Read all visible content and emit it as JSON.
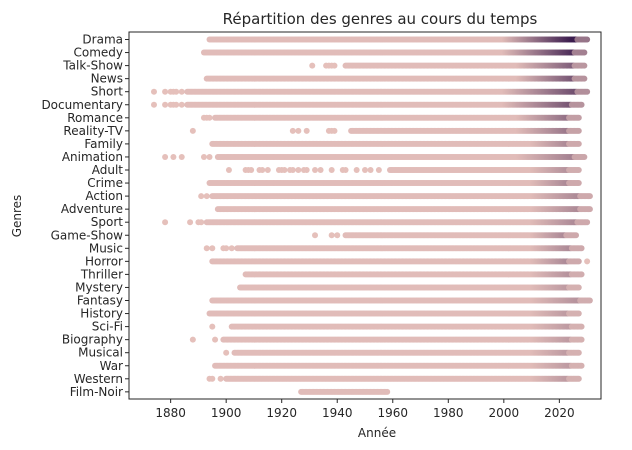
{
  "chart_data": {
    "type": "scatter",
    "title": "Répartition des genres au cours du temps",
    "xlabel": "Année",
    "ylabel": "Genres",
    "xlim": [
      1865,
      2035
    ],
    "xticks": [
      1880,
      1900,
      1920,
      1940,
      1960,
      1980,
      2000,
      2020
    ],
    "grid": false,
    "legend": "none",
    "colors": {
      "low": "#e8c3bd",
      "high": "#3b1c4e",
      "axis": "#262626"
    },
    "categories": [
      "Drama",
      "Comedy",
      "Talk-Show",
      "News",
      "Short",
      "Documentary",
      "Romance",
      "Reality-TV",
      "Family",
      "Animation",
      "Adult",
      "Crime",
      "Action",
      "Adventure",
      "Sport",
      "Game-Show",
      "Music",
      "Horror",
      "Thriller",
      "Mystery",
      "Fantasy",
      "History",
      "Sci-Fi",
      "Biography",
      "Musical",
      "War",
      "Western",
      "Film-Noir"
    ],
    "series": [
      {
        "genre": "Drama",
        "isolated": [],
        "range": [
          1894,
          2030
        ],
        "dense_from": 2000,
        "intensity": 1.0
      },
      {
        "genre": "Comedy",
        "isolated": [],
        "range": [
          1892,
          2029
        ],
        "dense_from": 2000,
        "intensity": 0.85
      },
      {
        "genre": "Talk-Show",
        "isolated": [
          1931,
          1936,
          1937,
          1938,
          1939
        ],
        "range": [
          1943,
          2029
        ],
        "dense_from": 2005,
        "intensity": 0.55
      },
      {
        "genre": "News",
        "isolated": [],
        "range": [
          1893,
          2029
        ],
        "dense_from": 2005,
        "intensity": 0.6
      },
      {
        "genre": "Short",
        "isolated": [
          1874,
          1878,
          1880,
          1881,
          1882,
          1884
        ],
        "range": [
          1886,
          2030
        ],
        "dense_from": 2000,
        "intensity": 0.65
      },
      {
        "genre": "Documentary",
        "isolated": [
          1874,
          1878,
          1880,
          1881,
          1882,
          1884
        ],
        "range": [
          1886,
          2028
        ],
        "dense_from": 2000,
        "intensity": 0.6
      },
      {
        "genre": "Romance",
        "isolated": [
          1892,
          1893,
          1894
        ],
        "range": [
          1896,
          2027
        ],
        "dense_from": 2005,
        "intensity": 0.45
      },
      {
        "genre": "Reality-TV",
        "isolated": [
          1888,
          1924,
          1926,
          1929,
          1937,
          1938,
          1939
        ],
        "range": [
          1945,
          2027
        ],
        "dense_from": 2005,
        "intensity": 0.4
      },
      {
        "genre": "Family",
        "isolated": [],
        "range": [
          1895,
          2027
        ],
        "dense_from": 2010,
        "intensity": 0.3
      },
      {
        "genre": "Animation",
        "isolated": [
          1878,
          1881,
          1884,
          1892,
          1894
        ],
        "range": [
          1897,
          2029
        ],
        "dense_from": 2005,
        "intensity": 0.35
      },
      {
        "genre": "Adult",
        "isolated": [
          1901,
          1907,
          1908,
          1909,
          1912,
          1913,
          1915,
          1919,
          1920,
          1921,
          1923,
          1924,
          1926,
          1928,
          1929,
          1932,
          1934,
          1938,
          1942,
          1943,
          1947,
          1950,
          1952,
          1955
        ],
        "range": [
          1959,
          2027
        ],
        "dense_from": 2010,
        "intensity": 0.25
      },
      {
        "genre": "Crime",
        "isolated": [],
        "range": [
          1894,
          2027
        ],
        "dense_from": 2010,
        "intensity": 0.3
      },
      {
        "genre": "Action",
        "isolated": [
          1891,
          1893
        ],
        "range": [
          1895,
          2031
        ],
        "dense_from": 2010,
        "intensity": 0.3
      },
      {
        "genre": "Adventure",
        "isolated": [],
        "range": [
          1897,
          2031
        ],
        "dense_from": 2010,
        "intensity": 0.3
      },
      {
        "genre": "Sport",
        "isolated": [
          1878,
          1887,
          1890,
          1891
        ],
        "range": [
          1893,
          2030
        ],
        "dense_from": 2010,
        "intensity": 0.3
      },
      {
        "genre": "Game-Show",
        "isolated": [
          1932,
          1938,
          1940
        ],
        "range": [
          1943,
          2026
        ],
        "dense_from": 2010,
        "intensity": 0.3
      },
      {
        "genre": "Music",
        "isolated": [
          1893,
          1895,
          1899,
          1900,
          1902
        ],
        "range": [
          1904,
          2028
        ],
        "dense_from": 2010,
        "intensity": 0.3
      },
      {
        "genre": "Horror",
        "isolated": [
          2030
        ],
        "range": [
          1895,
          2027
        ],
        "dense_from": 2010,
        "intensity": 0.3
      },
      {
        "genre": "Thriller",
        "isolated": [],
        "range": [
          1907,
          2028
        ],
        "dense_from": 2010,
        "intensity": 0.25
      },
      {
        "genre": "Mystery",
        "isolated": [],
        "range": [
          1905,
          2027
        ],
        "dense_from": 2010,
        "intensity": 0.2
      },
      {
        "genre": "Fantasy",
        "isolated": [],
        "range": [
          1895,
          2031
        ],
        "dense_from": 2010,
        "intensity": 0.25
      },
      {
        "genre": "History",
        "isolated": [],
        "range": [
          1894,
          2027
        ],
        "dense_from": 2010,
        "intensity": 0.2
      },
      {
        "genre": "Sci-Fi",
        "isolated": [
          1895
        ],
        "range": [
          1902,
          2028
        ],
        "dense_from": 2010,
        "intensity": 0.2
      },
      {
        "genre": "Biography",
        "isolated": [
          1888,
          1896
        ],
        "range": [
          1899,
          2028
        ],
        "dense_from": 2010,
        "intensity": 0.2
      },
      {
        "genre": "Musical",
        "isolated": [
          1900
        ],
        "range": [
          1903,
          2027
        ],
        "dense_from": 2010,
        "intensity": 0.2
      },
      {
        "genre": "War",
        "isolated": [],
        "range": [
          1896,
          2028
        ],
        "dense_from": 2010,
        "intensity": 0.2
      },
      {
        "genre": "Western",
        "isolated": [
          1894,
          1895,
          1898
        ],
        "range": [
          1900,
          2027
        ],
        "dense_from": 2010,
        "intensity": 0.2
      },
      {
        "genre": "Film-Noir",
        "isolated": [],
        "range": [
          1927,
          1958
        ],
        "dense_from": 9999,
        "intensity": 0.0
      }
    ]
  }
}
